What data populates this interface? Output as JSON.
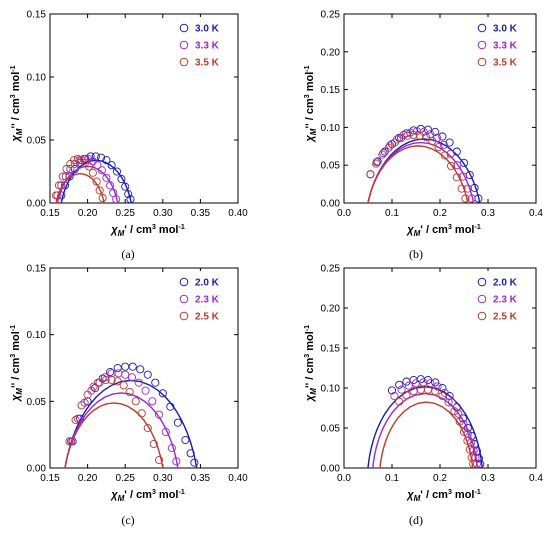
{
  "figure": {
    "panels": [
      {
        "caption": "(a)",
        "ylabel": "χM'' / cm³ mol⁻¹",
        "xlabel": "χM' / cm³ mol⁻¹"
      },
      {
        "caption": "(b)",
        "ylabel": "χM'' / cm³ mol⁻¹",
        "xlabel": "χM' / cm³ mol⁻¹"
      },
      {
        "caption": "(c)",
        "ylabel": "χM'' / cm³ mol⁻¹",
        "xlabel": "χM' / cm³ mol⁻¹"
      },
      {
        "caption": "(d)",
        "ylabel": "χM'' / cm³ mol⁻¹",
        "xlabel": "χM' / cm³ mol⁻¹"
      }
    ]
  },
  "chart_data": [
    {
      "type": "scatter",
      "panel": "a",
      "xlabel": "χM' / cm³ mol⁻¹",
      "ylabel": "χM'' / cm³ mol⁻¹",
      "xlim": [
        0.15,
        0.4
      ],
      "ylim": [
        0.0,
        0.15
      ],
      "xticks": [
        "0.15",
        "0.20",
        "0.25",
        "0.30",
        "0.35",
        "0.40"
      ],
      "yticks": [
        "0.00",
        "0.05",
        "0.10",
        "0.15"
      ],
      "legend_position": "top-right",
      "series": [
        {
          "name": "3.0 K",
          "color": "#1a1ab8",
          "fit": {
            "chiS": 0.165,
            "chiT": 0.258,
            "alpha": 0.2
          },
          "x": [
            0.165,
            0.17,
            0.176,
            0.183,
            0.19,
            0.197,
            0.204,
            0.211,
            0.218,
            0.225,
            0.232,
            0.239,
            0.245,
            0.25,
            0.254,
            0.257
          ],
          "y": [
            0.006,
            0.014,
            0.021,
            0.027,
            0.032,
            0.035,
            0.037,
            0.037,
            0.036,
            0.034,
            0.03,
            0.025,
            0.019,
            0.013,
            0.007,
            0.003
          ]
        },
        {
          "name": "3.3 K",
          "color": "#9a28d6",
          "fit": {
            "chiS": 0.16,
            "chiT": 0.24,
            "alpha": 0.2
          },
          "x": [
            0.16,
            0.165,
            0.171,
            0.177,
            0.183,
            0.189,
            0.195,
            0.201,
            0.207,
            0.213,
            0.219,
            0.225,
            0.23,
            0.234,
            0.238
          ],
          "y": [
            0.006,
            0.014,
            0.021,
            0.027,
            0.031,
            0.034,
            0.035,
            0.035,
            0.033,
            0.03,
            0.026,
            0.02,
            0.014,
            0.008,
            0.003
          ]
        },
        {
          "name": "3.5 K",
          "color": "#c0392b",
          "fit": {
            "chiS": 0.158,
            "chiT": 0.222,
            "alpha": 0.2
          },
          "x": [
            0.158,
            0.162,
            0.167,
            0.172,
            0.177,
            0.182,
            0.187,
            0.192,
            0.197,
            0.202,
            0.207,
            0.212,
            0.216,
            0.22
          ],
          "y": [
            0.006,
            0.014,
            0.021,
            0.027,
            0.031,
            0.034,
            0.035,
            0.034,
            0.032,
            0.029,
            0.024,
            0.017,
            0.01,
            0.004
          ]
        }
      ]
    },
    {
      "type": "scatter",
      "panel": "b",
      "xlabel": "χM' / cm³ mol⁻¹",
      "ylabel": "χM'' / cm³ mol⁻¹",
      "xlim": [
        0.0,
        0.4
      ],
      "ylim": [
        0.0,
        0.25
      ],
      "xticks": [
        "0.0",
        "0.1",
        "0.2",
        "0.3",
        "0.4"
      ],
      "yticks": [
        "0.00",
        "0.05",
        "0.10",
        "0.15",
        "0.20",
        "0.25"
      ],
      "legend_position": "top-right",
      "series": [
        {
          "name": "3.0 K",
          "color": "#1a1ab8",
          "fit": {
            "chiS": 0.05,
            "chiT": 0.283,
            "alpha": 0.2
          },
          "x": [
            0.055,
            0.07,
            0.085,
            0.1,
            0.115,
            0.13,
            0.145,
            0.16,
            0.175,
            0.19,
            0.205,
            0.22,
            0.235,
            0.25,
            0.262,
            0.272,
            0.28
          ],
          "y": [
            0.038,
            0.055,
            0.068,
            0.078,
            0.086,
            0.092,
            0.096,
            0.098,
            0.097,
            0.094,
            0.088,
            0.08,
            0.068,
            0.053,
            0.037,
            0.02,
            0.006
          ]
        },
        {
          "name": "3.3 K",
          "color": "#9a28d6",
          "fit": {
            "chiS": 0.05,
            "chiT": 0.27,
            "alpha": 0.2
          },
          "x": [
            0.055,
            0.068,
            0.082,
            0.096,
            0.11,
            0.124,
            0.138,
            0.152,
            0.166,
            0.18,
            0.194,
            0.208,
            0.222,
            0.236,
            0.248,
            0.258,
            0.266
          ],
          "y": [
            0.038,
            0.054,
            0.066,
            0.076,
            0.084,
            0.09,
            0.093,
            0.095,
            0.094,
            0.091,
            0.086,
            0.077,
            0.065,
            0.05,
            0.035,
            0.019,
            0.006
          ]
        },
        {
          "name": "3.5 K",
          "color": "#c0392b",
          "fit": {
            "chiS": 0.05,
            "chiT": 0.258,
            "alpha": 0.2
          },
          "x": [
            0.055,
            0.067,
            0.08,
            0.093,
            0.106,
            0.119,
            0.132,
            0.145,
            0.158,
            0.171,
            0.184,
            0.197,
            0.21,
            0.223,
            0.235,
            0.245,
            0.253
          ],
          "y": [
            0.038,
            0.052,
            0.064,
            0.073,
            0.08,
            0.086,
            0.089,
            0.09,
            0.089,
            0.087,
            0.082,
            0.074,
            0.063,
            0.049,
            0.034,
            0.019,
            0.006
          ]
        }
      ]
    },
    {
      "type": "scatter",
      "panel": "c",
      "xlabel": "χM' / cm³ mol⁻¹",
      "ylabel": "χM'' / cm³ mol⁻¹",
      "xlim": [
        0.15,
        0.4
      ],
      "ylim": [
        0.0,
        0.15
      ],
      "xticks": [
        "0.15",
        "0.20",
        "0.25",
        "0.30",
        "0.35",
        "0.40"
      ],
      "yticks": [
        "0.00",
        "0.05",
        "0.10",
        "0.15"
      ],
      "legend_position": "top-right",
      "series": [
        {
          "name": "2.0 K",
          "color": "#1a1ab8",
          "fit": {
            "chiS": 0.17,
            "chiT": 0.345,
            "alpha": 0.18
          },
          "x": [
            0.18,
            0.19,
            0.2,
            0.21,
            0.22,
            0.23,
            0.24,
            0.25,
            0.26,
            0.27,
            0.28,
            0.29,
            0.3,
            0.31,
            0.32,
            0.33,
            0.337,
            0.342
          ],
          "y": [
            0.02,
            0.037,
            0.05,
            0.06,
            0.067,
            0.072,
            0.075,
            0.076,
            0.076,
            0.074,
            0.07,
            0.064,
            0.056,
            0.046,
            0.034,
            0.021,
            0.011,
            0.004
          ]
        },
        {
          "name": "2.3 K",
          "color": "#9a28d6",
          "fit": {
            "chiS": 0.17,
            "chiT": 0.32,
            "alpha": 0.18
          },
          "x": [
            0.178,
            0.187,
            0.196,
            0.205,
            0.214,
            0.223,
            0.232,
            0.241,
            0.25,
            0.259,
            0.268,
            0.277,
            0.286,
            0.295,
            0.304,
            0.312,
            0.318
          ],
          "y": [
            0.02,
            0.037,
            0.049,
            0.058,
            0.064,
            0.068,
            0.071,
            0.071,
            0.07,
            0.068,
            0.064,
            0.058,
            0.05,
            0.04,
            0.027,
            0.015,
            0.005
          ]
        },
        {
          "name": "2.5 K",
          "color": "#c0392b",
          "fit": {
            "chiS": 0.17,
            "chiT": 0.3,
            "alpha": 0.18
          },
          "x": [
            0.176,
            0.184,
            0.192,
            0.2,
            0.208,
            0.216,
            0.224,
            0.232,
            0.24,
            0.248,
            0.256,
            0.264,
            0.272,
            0.28,
            0.288,
            0.295
          ],
          "y": [
            0.02,
            0.036,
            0.047,
            0.055,
            0.061,
            0.064,
            0.066,
            0.066,
            0.065,
            0.062,
            0.057,
            0.05,
            0.041,
            0.03,
            0.018,
            0.006
          ]
        }
      ]
    },
    {
      "type": "scatter",
      "panel": "d",
      "xlabel": "χM' / cm³ mol⁻¹",
      "ylabel": "χM'' / cm³ mol⁻¹",
      "xlim": [
        0.0,
        0.4
      ],
      "ylim": [
        0.0,
        0.25
      ],
      "xticks": [
        "0.0",
        "0.1",
        "0.2",
        "0.3",
        "0.4"
      ],
      "yticks": [
        "0.00",
        "0.05",
        "0.10",
        "0.15",
        "0.20",
        "0.25"
      ],
      "legend_position": "top-right",
      "series": [
        {
          "name": "2.0 K",
          "color": "#1a1ab8",
          "fit": {
            "chiS": 0.05,
            "chiT": 0.288,
            "alpha": 0.1
          },
          "x": [
            0.1,
            0.115,
            0.13,
            0.145,
            0.16,
            0.175,
            0.19,
            0.205,
            0.22,
            0.235,
            0.248,
            0.258,
            0.266,
            0.272,
            0.277,
            0.281,
            0.284
          ],
          "y": [
            0.097,
            0.104,
            0.108,
            0.11,
            0.111,
            0.11,
            0.107,
            0.1,
            0.09,
            0.076,
            0.062,
            0.05,
            0.04,
            0.03,
            0.021,
            0.012,
            0.005
          ]
        },
        {
          "name": "2.3 K",
          "color": "#9a28d6",
          "fit": {
            "chiS": 0.06,
            "chiT": 0.278,
            "alpha": 0.1
          },
          "x": [
            0.105,
            0.12,
            0.135,
            0.15,
            0.165,
            0.18,
            0.195,
            0.21,
            0.225,
            0.238,
            0.249,
            0.258,
            0.265,
            0.27,
            0.274,
            0.277
          ],
          "y": [
            0.09,
            0.098,
            0.103,
            0.106,
            0.107,
            0.106,
            0.102,
            0.094,
            0.082,
            0.068,
            0.055,
            0.043,
            0.032,
            0.022,
            0.013,
            0.005
          ]
        },
        {
          "name": "2.5 K",
          "color": "#c0392b",
          "fit": {
            "chiS": 0.075,
            "chiT": 0.268,
            "alpha": 0.1
          },
          "x": [
            0.115,
            0.13,
            0.145,
            0.16,
            0.175,
            0.19,
            0.205,
            0.218,
            0.23,
            0.241,
            0.25,
            0.257,
            0.262,
            0.266,
            0.269
          ],
          "y": [
            0.083,
            0.091,
            0.096,
            0.098,
            0.098,
            0.096,
            0.09,
            0.082,
            0.071,
            0.058,
            0.045,
            0.034,
            0.023,
            0.013,
            0.005
          ]
        }
      ]
    }
  ]
}
